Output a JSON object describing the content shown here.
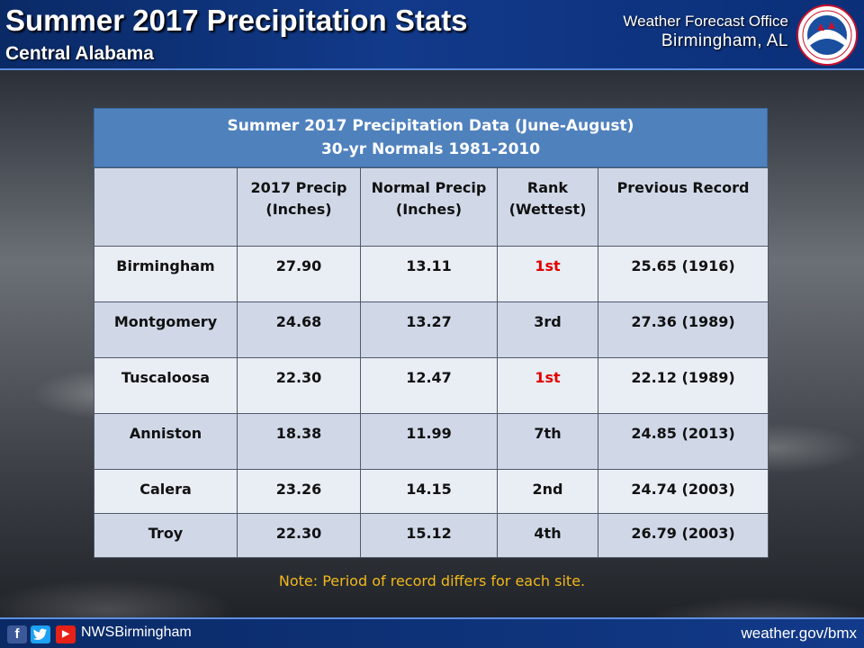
{
  "header": {
    "title": "Summer 2017 Precipitation Stats",
    "subtitle": "Central Alabama",
    "office_line1": "Weather Forecast Office",
    "office_line2": "Birmingham, AL",
    "logo_text": "NATIONAL WEATHER SERVICE"
  },
  "table": {
    "title_line1": "Summer 2017 Precipitation Data (June-August)",
    "title_line2": "30-yr Normals 1981-2010",
    "columns": [
      [
        "",
        ""
      ],
      [
        "2017 Precip",
        "(Inches)"
      ],
      [
        "Normal Precip",
        "(Inches)"
      ],
      [
        "Rank",
        "(Wettest)"
      ],
      [
        "Previous Record",
        ""
      ]
    ],
    "rows": [
      {
        "site": "Birmingham",
        "precip_2017": "27.90",
        "normal": "13.11",
        "rank": "1st",
        "record": "25.65 (1916)"
      },
      {
        "site": "Montgomery",
        "precip_2017": "24.68",
        "normal": "13.27",
        "rank": "3rd",
        "record": "27.36 (1989)"
      },
      {
        "site": "Tuscaloosa",
        "precip_2017": "22.30",
        "normal": "12.47",
        "rank": "1st",
        "record": "22.12 (1989)"
      },
      {
        "site": "Anniston",
        "precip_2017": "18.38",
        "normal": "11.99",
        "rank": "7th",
        "record": "24.85 (2013)"
      },
      {
        "site": "Calera",
        "precip_2017": "23.26",
        "normal": "14.15",
        "rank": "2nd",
        "record": "24.74 (2003)"
      },
      {
        "site": "Troy",
        "precip_2017": "22.30",
        "normal": "15.12",
        "rank": "4th",
        "record": "26.79 (2003)"
      }
    ]
  },
  "note": "Note: Period of record differs for each site.",
  "footer": {
    "facebook_icon": "f",
    "twitter_icon": "twitter-bird",
    "youtube_icon": "▶",
    "handle": "NWSBirmingham",
    "site": "weather.gov/bmx"
  },
  "colors": {
    "header_bg": "#123a8a",
    "table_title_bg": "#4f81bd",
    "row_light": "#e9edf4",
    "row_dark": "#d0d8e8",
    "record_rank": "#e00000",
    "note": "#f2b81c"
  }
}
